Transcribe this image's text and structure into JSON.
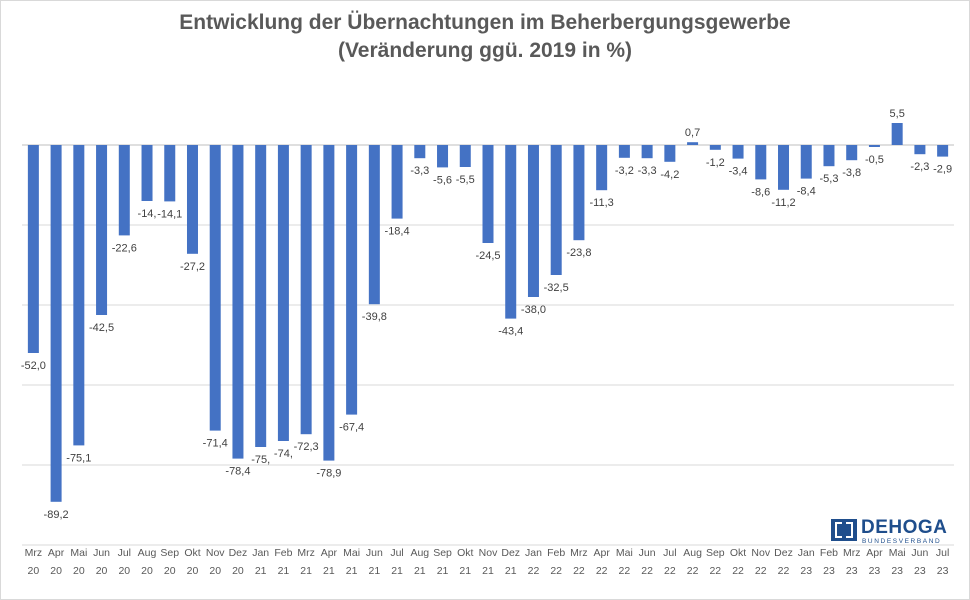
{
  "chart_data": {
    "type": "bar",
    "title_line1": "Entwicklung der Übernachtungen im Beherbergungsgewerbe",
    "title_line2": "(Veränderung ggü. 2019 in %)",
    "xlabel": "",
    "ylabel": "",
    "ylim": [
      -100,
      10
    ],
    "grid": true,
    "bar_color": "#4472c4",
    "categories": [
      [
        "Mrz",
        "20"
      ],
      [
        "Apr",
        "20"
      ],
      [
        "Mai",
        "20"
      ],
      [
        "Jun",
        "20"
      ],
      [
        "Jul",
        "20"
      ],
      [
        "Aug",
        "20"
      ],
      [
        "Sep",
        "20"
      ],
      [
        "Okt",
        "20"
      ],
      [
        "Nov",
        "20"
      ],
      [
        "Dez",
        "20"
      ],
      [
        "Jan",
        "21"
      ],
      [
        "Feb",
        "21"
      ],
      [
        "Mrz",
        "21"
      ],
      [
        "Apr",
        "21"
      ],
      [
        "Mai",
        "21"
      ],
      [
        "Jun",
        "21"
      ],
      [
        "Jul",
        "21"
      ],
      [
        "Aug",
        "21"
      ],
      [
        "Sep",
        "21"
      ],
      [
        "Okt",
        "21"
      ],
      [
        "Nov",
        "21"
      ],
      [
        "Dez",
        "21"
      ],
      [
        "Jan",
        "22"
      ],
      [
        "Feb",
        "22"
      ],
      [
        "Mrz",
        "22"
      ],
      [
        "Apr",
        "22"
      ],
      [
        "Mai",
        "22"
      ],
      [
        "Jun",
        "22"
      ],
      [
        "Jul",
        "22"
      ],
      [
        "Aug",
        "22"
      ],
      [
        "Sep",
        "22"
      ],
      [
        "Okt",
        "22"
      ],
      [
        "Nov",
        "22"
      ],
      [
        "Dez",
        "22"
      ],
      [
        "Jan",
        "23"
      ],
      [
        "Feb",
        "23"
      ],
      [
        "Mrz",
        "23"
      ],
      [
        "Apr",
        "23"
      ],
      [
        "Mai",
        "23"
      ],
      [
        "Jun",
        "23"
      ],
      [
        "Jul",
        "23"
      ]
    ],
    "values": [
      -52.0,
      -89.2,
      -75.1,
      -42.5,
      -22.6,
      -14.0,
      -14.1,
      -27.2,
      -71.4,
      -78.4,
      -75.5,
      -74.0,
      -72.3,
      -78.9,
      -67.4,
      -39.8,
      -18.4,
      -3.3,
      -5.6,
      -5.5,
      -24.5,
      -43.4,
      -38.0,
      -32.5,
      -23.8,
      -11.3,
      -3.2,
      -3.3,
      -4.2,
      0.7,
      -1.2,
      -3.4,
      -8.6,
      -11.2,
      -8.4,
      -5.3,
      -3.8,
      -0.5,
      5.5,
      -2.3,
      -2.9
    ],
    "labels": [
      "-52,0",
      "-89,2",
      "-75,1",
      "-42,5",
      "-22,6",
      "-14,",
      "-14,1",
      "-27,2",
      "-71,4",
      "-78,4",
      "-75,",
      "-74,",
      "-72,3",
      "-78,9",
      "-67,4",
      "-39,8",
      "-18,4",
      "-3,3",
      "-5,6",
      "-5,5",
      "-24,5",
      "-43,4",
      "-38,0",
      "-32,5",
      "-23,8",
      "-11,3",
      "-3,2",
      "-3,3",
      "-4,2",
      "0,7",
      "-1,2",
      "-3,4",
      "-8,6",
      "-11,2",
      "-8,4",
      "-5,3",
      "-3,8",
      "-0,5",
      "5,5",
      "-2,3",
      "-2,9"
    ]
  },
  "logo": {
    "name": "DEHOGA",
    "sub": "BUNDESVERBAND"
  }
}
